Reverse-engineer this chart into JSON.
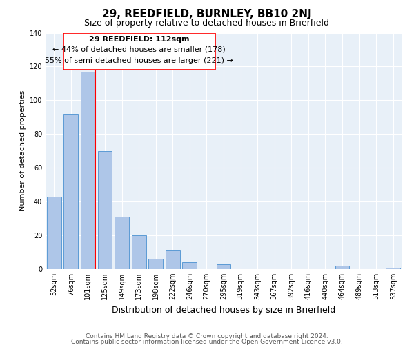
{
  "title": "29, REEDFIELD, BURNLEY, BB10 2NJ",
  "subtitle": "Size of property relative to detached houses in Brierfield",
  "xlabel": "Distribution of detached houses by size in Brierfield",
  "ylabel": "Number of detached properties",
  "bar_labels": [
    "52sqm",
    "76sqm",
    "101sqm",
    "125sqm",
    "149sqm",
    "173sqm",
    "198sqm",
    "222sqm",
    "246sqm",
    "270sqm",
    "295sqm",
    "319sqm",
    "343sqm",
    "367sqm",
    "392sqm",
    "416sqm",
    "440sqm",
    "464sqm",
    "489sqm",
    "513sqm",
    "537sqm"
  ],
  "bar_values": [
    43,
    92,
    117,
    70,
    31,
    20,
    6,
    11,
    4,
    0,
    3,
    0,
    0,
    0,
    0,
    0,
    0,
    2,
    0,
    0,
    1
  ],
  "bar_color": "#aec6e8",
  "bar_edge_color": "#5b9bd5",
  "background_color": "#e8f0f8",
  "ylim": [
    0,
    140
  ],
  "yticks": [
    0,
    20,
    40,
    60,
    80,
    100,
    120,
    140
  ],
  "annotation_title": "29 REEDFIELD: 112sqm",
  "annotation_line1": "← 44% of detached houses are smaller (178)",
  "annotation_line2": "55% of semi-detached houses are larger (221) →",
  "footnote1": "Contains HM Land Registry data © Crown copyright and database right 2024.",
  "footnote2": "Contains public sector information licensed under the Open Government Licence v3.0.",
  "title_fontsize": 11,
  "subtitle_fontsize": 9,
  "xlabel_fontsize": 9,
  "ylabel_fontsize": 8,
  "annotation_fontsize": 8,
  "footnote_fontsize": 6.5,
  "tick_fontsize": 7
}
